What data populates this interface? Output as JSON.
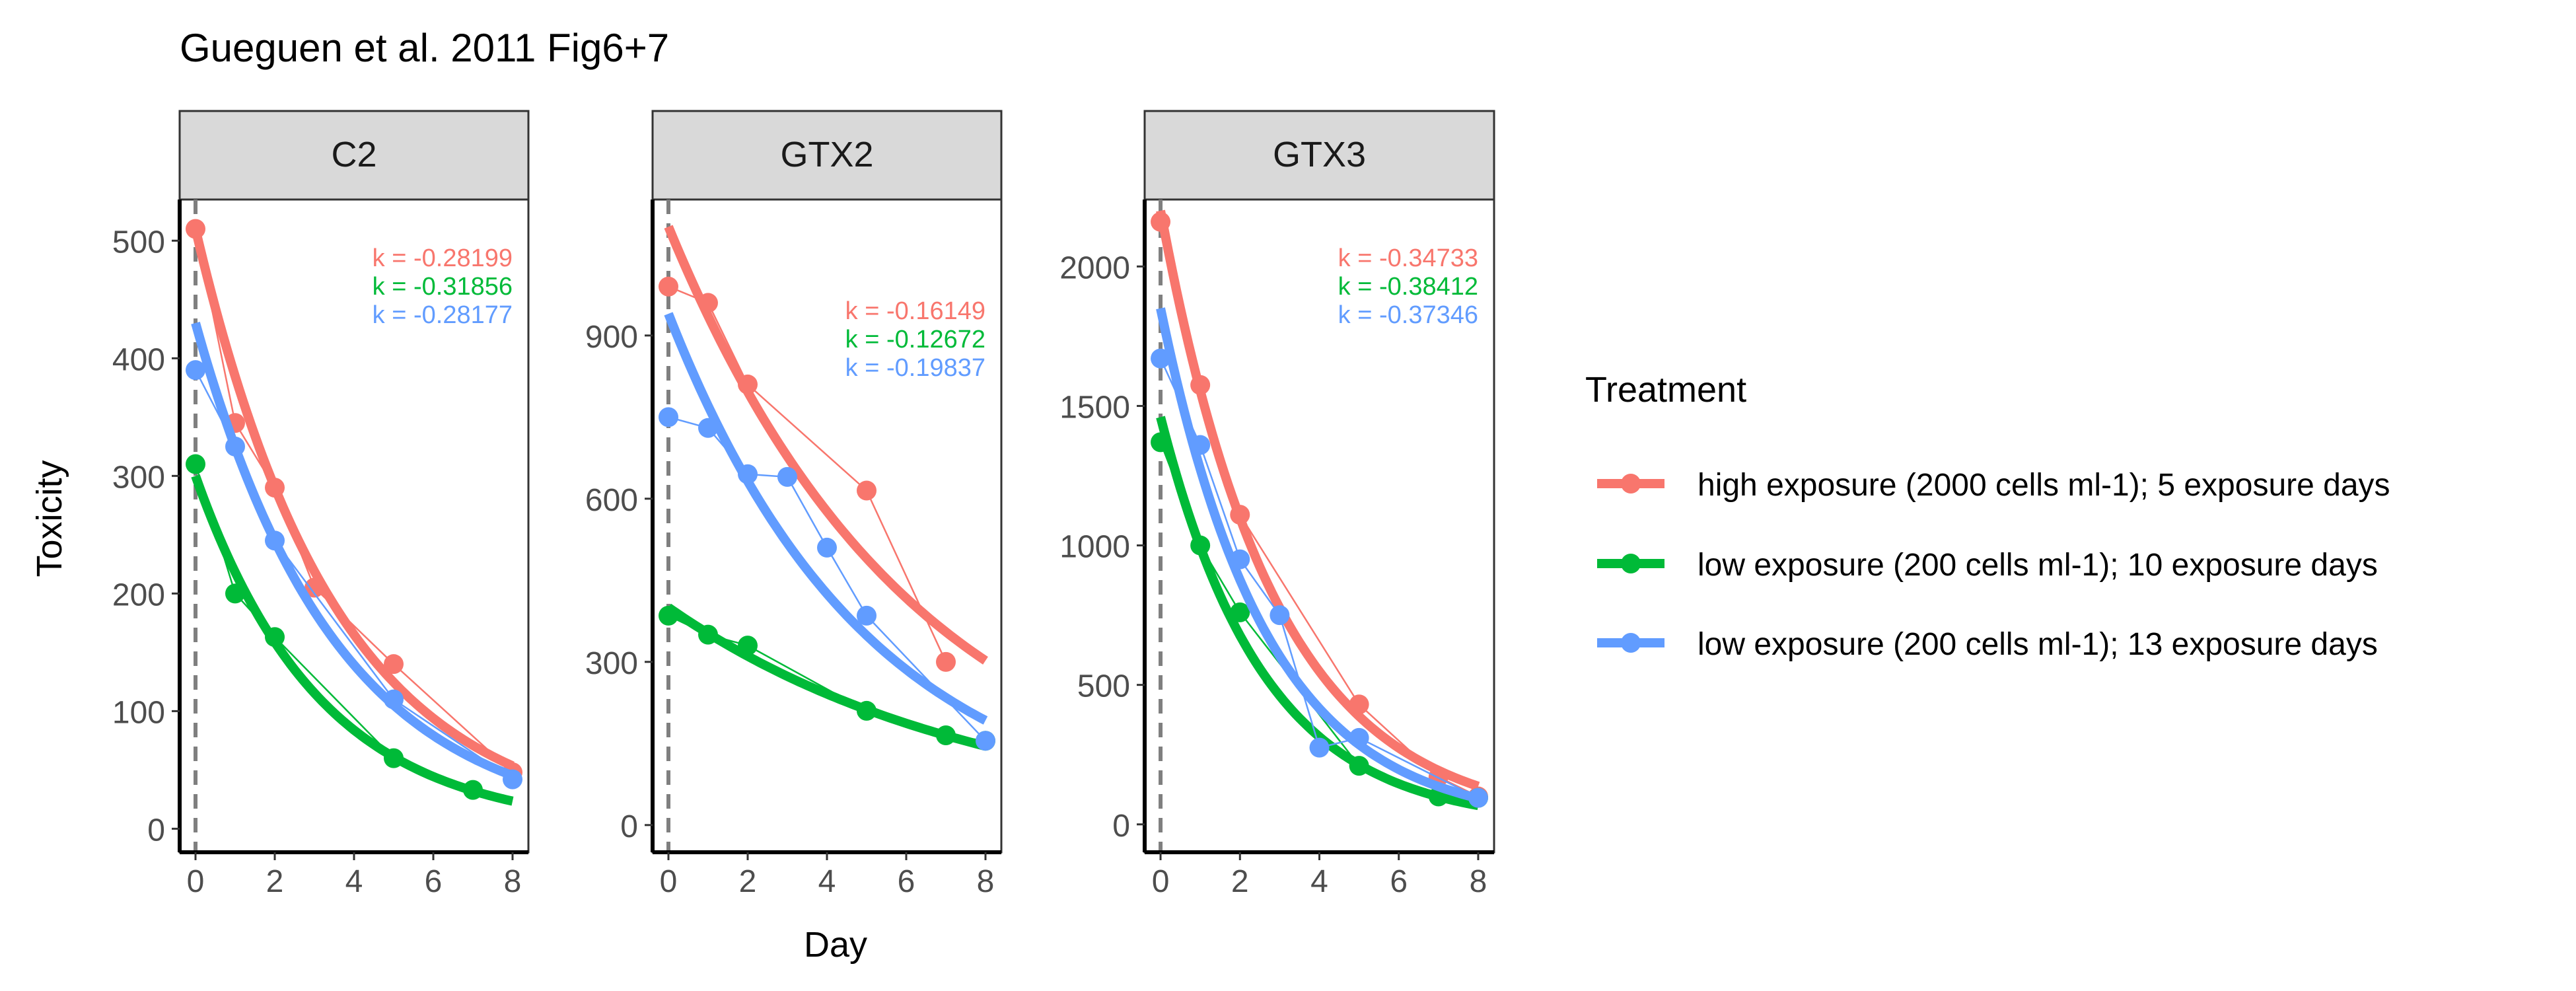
{
  "title": "Gueguen et al. 2011 Fig6+7",
  "ylabel": "Toxicity",
  "xlabel": "Day",
  "legend": {
    "title": "Treatment",
    "placement": "right",
    "entries": [
      {
        "label": "high exposure (2000 cells ml-1); 5 exposure days",
        "color": "#F8766D"
      },
      {
        "label": "low exposure (200 cells ml-1); 10 exposure days",
        "color": "#00BA38"
      },
      {
        "label": "low exposure (200 cells ml-1); 13 exposure days",
        "color": "#619CFF"
      }
    ]
  },
  "colors": {
    "strip_fill": "#d9d9d9",
    "dashed_line": "#7f7f7f",
    "axis_text": "#4d4d4d"
  },
  "chart_data": [
    {
      "type": "scatter",
      "facet": "C2",
      "xlim": [
        -0.4,
        8.4
      ],
      "ylim": [
        -20,
        535
      ],
      "xticks": [
        0,
        2,
        4,
        6,
        8
      ],
      "yticks": [
        0,
        100,
        200,
        300,
        400,
        500
      ],
      "vline_x": 0,
      "series": [
        {
          "name": "high exposure (2000 cells ml-1); 5 exposure days",
          "color": "#F8766D",
          "points": [
            [
              0,
              510
            ],
            [
              1,
              345
            ],
            [
              2,
              290
            ],
            [
              3,
              205
            ],
            [
              5,
              140
            ],
            [
              8,
              48
            ]
          ],
          "fit": {
            "a": 510,
            "k": -0.28199
          },
          "k_label": "k = -0.28199"
        },
        {
          "name": "low exposure (200 cells ml-1); 10 exposure days",
          "color": "#00BA38",
          "points": [
            [
              0,
              310
            ],
            [
              1,
              200
            ],
            [
              2,
              163
            ],
            [
              5,
              60
            ],
            [
              7,
              33
            ]
          ],
          "fit": {
            "a": 300,
            "k": -0.31856
          },
          "k_label": "k = -0.31856"
        },
        {
          "name": "low exposure (200 cells ml-1); 13 exposure days",
          "color": "#619CFF",
          "points": [
            [
              0,
              390
            ],
            [
              1,
              325
            ],
            [
              2,
              245
            ],
            [
              5,
              110
            ],
            [
              8,
              42
            ]
          ],
          "fit": {
            "a": 430,
            "k": -0.28177
          },
          "k_label": "k = -0.28177"
        }
      ]
    },
    {
      "type": "scatter",
      "facet": "GTX2",
      "xlim": [
        -0.4,
        8.4
      ],
      "ylim": [
        -50,
        1150
      ],
      "xticks": [
        0,
        2,
        4,
        6,
        8
      ],
      "yticks": [
        0,
        300,
        600,
        900
      ],
      "vline_x": 0,
      "series": [
        {
          "name": "high exposure (2000 cells ml-1); 5 exposure days",
          "color": "#F8766D",
          "points": [
            [
              0,
              990
            ],
            [
              1,
              960
            ],
            [
              2,
              810
            ],
            [
              5,
              615
            ],
            [
              7,
              300
            ]
          ],
          "fit": {
            "a": 1100,
            "k": -0.16149
          },
          "k_label": "k = -0.16149"
        },
        {
          "name": "low exposure (200 cells ml-1); 10 exposure days",
          "color": "#00BA38",
          "points": [
            [
              0,
              385
            ],
            [
              1,
              350
            ],
            [
              2,
              330
            ],
            [
              5,
              210
            ],
            [
              7,
              165
            ],
            [
              8,
              155
            ]
          ],
          "fit": {
            "a": 400,
            "k": -0.12672
          },
          "k_label": "k = -0.12672"
        },
        {
          "name": "low exposure (200 cells ml-1); 13 exposure days",
          "color": "#619CFF",
          "points": [
            [
              0,
              750
            ],
            [
              1,
              730
            ],
            [
              2,
              645
            ],
            [
              3,
              640
            ],
            [
              4,
              510
            ],
            [
              5,
              385
            ],
            [
              8,
              155
            ]
          ],
          "fit": {
            "a": 940,
            "k": -0.19837
          },
          "k_label": "k = -0.19837"
        }
      ]
    },
    {
      "type": "scatter",
      "facet": "GTX3",
      "xlim": [
        -0.4,
        8.4
      ],
      "ylim": [
        -100,
        2240
      ],
      "xticks": [
        0,
        2,
        4,
        6,
        8
      ],
      "yticks": [
        0,
        500,
        1000,
        1500,
        2000
      ],
      "vline_x": 0,
      "series": [
        {
          "name": "high exposure (2000 cells ml-1); 5 exposure days",
          "color": "#F8766D",
          "points": [
            [
              0,
              2160
            ],
            [
              1,
              1575
            ],
            [
              2,
              1110
            ],
            [
              5,
              430
            ],
            [
              7,
              170
            ],
            [
              8,
              100
            ]
          ],
          "fit": {
            "a": 2200,
            "k": -0.34733
          },
          "k_label": "k = -0.34733"
        },
        {
          "name": "low exposure (200 cells ml-1); 10 exposure days",
          "color": "#00BA38",
          "points": [
            [
              0,
              1370
            ],
            [
              1,
              1000
            ],
            [
              2,
              760
            ],
            [
              5,
              210
            ],
            [
              7,
              100
            ],
            [
              8,
              95
            ]
          ],
          "fit": {
            "a": 1460,
            "k": -0.38412
          },
          "k_label": "k = -0.38412"
        },
        {
          "name": "low exposure (200 cells ml-1); 13 exposure days",
          "color": "#619CFF",
          "points": [
            [
              0,
              1670
            ],
            [
              1,
              1360
            ],
            [
              2,
              950
            ],
            [
              3,
              750
            ],
            [
              4,
              275
            ],
            [
              5,
              310
            ],
            [
              8,
              95
            ]
          ],
          "fit": {
            "a": 1850,
            "k": -0.37346
          },
          "k_label": "k = -0.37346"
        }
      ]
    }
  ]
}
